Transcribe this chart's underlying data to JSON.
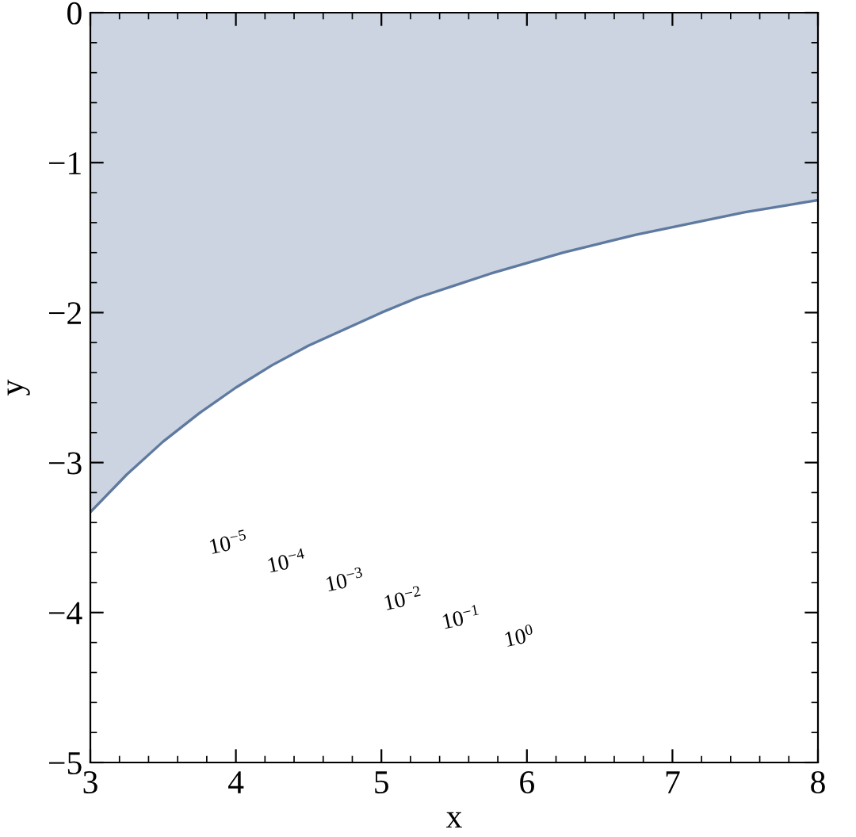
{
  "chart_data": {
    "type": "area",
    "xlabel": "x",
    "ylabel": "y",
    "x": [
      3,
      3.25,
      3.5,
      3.75,
      4,
      4.25,
      4.5,
      4.75,
      5,
      5.25,
      5.5,
      5.75,
      6,
      6.25,
      6.5,
      6.75,
      7,
      7.25,
      7.5,
      7.75,
      8
    ],
    "series": [
      {
        "color": "#5f7aa0",
        "values": [
          -3.33,
          -3.08,
          -2.86,
          -2.67,
          -2.5,
          -2.35,
          -2.22,
          -2.11,
          -2,
          -1.9,
          -1.82,
          -1.74,
          -1.67,
          -1.6,
          -1.54,
          -1.48,
          -1.43,
          -1.38,
          -1.33,
          -1.29,
          -1.25
        ]
      }
    ],
    "xlim": [
      3,
      8
    ],
    "ylim": [
      -5,
      0
    ],
    "xticks": [
      3,
      4,
      5,
      6,
      7,
      8
    ],
    "yticks": [
      {
        "value": -5,
        "label": "−5"
      },
      {
        "value": -4,
        "label": "−4"
      },
      {
        "value": -3,
        "label": "−3"
      },
      {
        "value": -2,
        "label": "−2"
      },
      {
        "value": -1,
        "label": "−1"
      },
      0
    ],
    "grid": false,
    "line_style": "solid",
    "marker": "none",
    "annotations": [
      "10$^{−5}$",
      "10$^{−4}$",
      "10$^{−3}$",
      "10$^{−2}$",
      "10$^{−1}$",
      "10$^{0}$"
    ]
  }
}
